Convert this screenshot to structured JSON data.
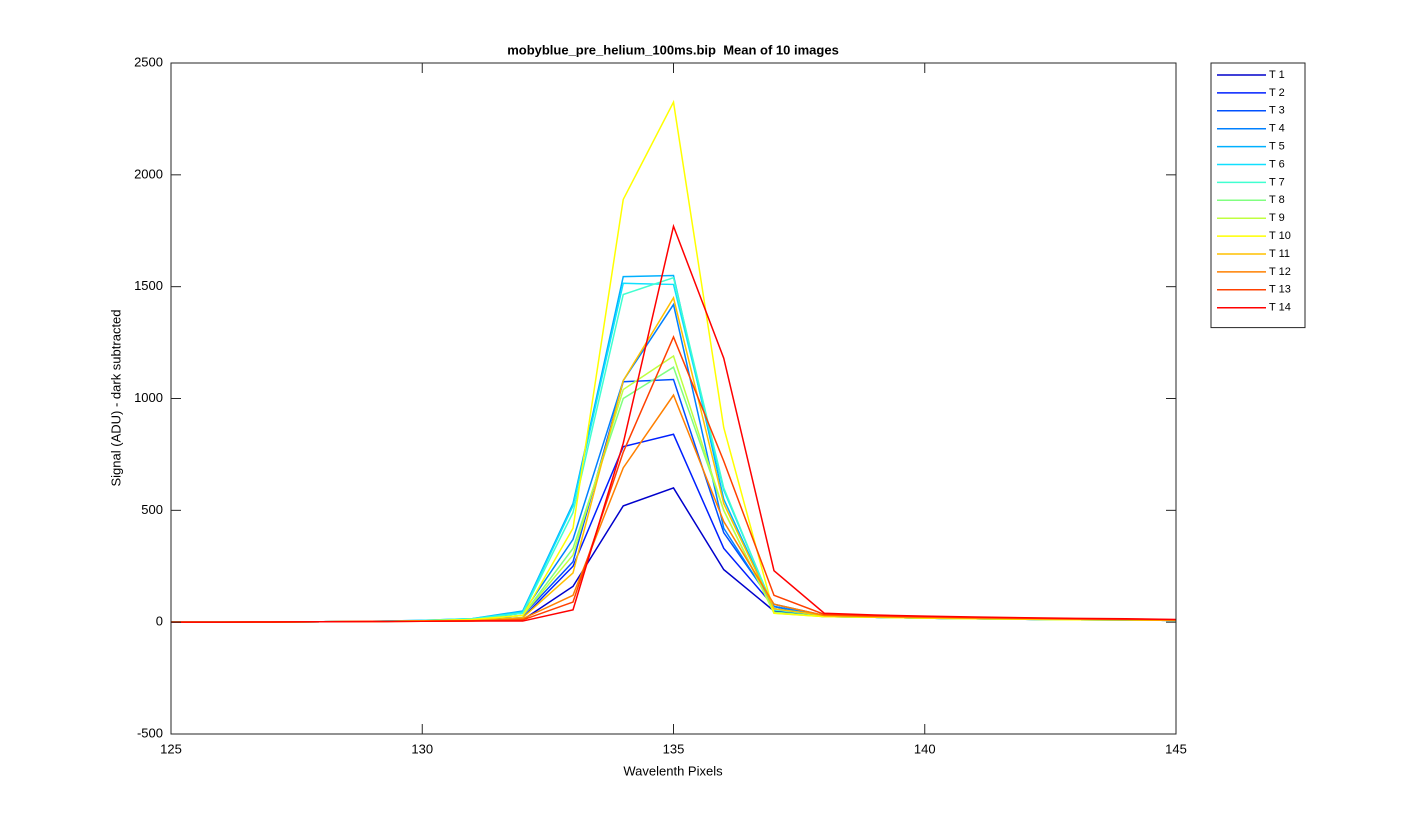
{
  "chart_data": {
    "type": "line",
    "title": "mobyblue_pre_helium_100ms.bip  Mean of 10 images",
    "xlabel": "Wavelenth Pixels",
    "ylabel": "Signal (ADU) - dark subtracted",
    "x": [
      125,
      126,
      127,
      128,
      129,
      130,
      131,
      132,
      133,
      134,
      135,
      136,
      137,
      138,
      139,
      140,
      141,
      142,
      143,
      144,
      145
    ],
    "xlim": [
      125,
      145
    ],
    "xticks": [
      125,
      130,
      135,
      140,
      145
    ],
    "ylim": [
      -500,
      2500
    ],
    "yticks": [
      -500,
      0,
      500,
      1000,
      1500,
      2000,
      2500
    ],
    "legend": "outside-top-right",
    "series": [
      {
        "name": "T 1",
        "color": "#0000cc",
        "values": [
          0,
          0,
          1,
          2,
          3,
          5,
          10,
          10,
          160,
          520,
          600,
          235,
          50,
          25,
          22,
          18,
          15,
          13,
          11,
          10,
          8
        ]
      },
      {
        "name": "T 2",
        "color": "#0020ff",
        "values": [
          0,
          0,
          1,
          2,
          3,
          5,
          10,
          20,
          250,
          785,
          840,
          330,
          70,
          25,
          22,
          18,
          15,
          13,
          11,
          10,
          8
        ]
      },
      {
        "name": "T 3",
        "color": "#0050ff",
        "values": [
          0,
          0,
          1,
          2,
          3,
          5,
          12,
          30,
          270,
          1075,
          1085,
          400,
          80,
          30,
          22,
          18,
          15,
          13,
          11,
          10,
          8
        ]
      },
      {
        "name": "T 4",
        "color": "#0080ff",
        "values": [
          0,
          0,
          1,
          2,
          3,
          6,
          14,
          40,
          370,
          1080,
          1420,
          420,
          70,
          30,
          22,
          18,
          15,
          13,
          11,
          10,
          8
        ]
      },
      {
        "name": "T 5",
        "color": "#00b0ff",
        "values": [
          0,
          0,
          1,
          2,
          4,
          8,
          16,
          50,
          530,
          1545,
          1550,
          550,
          60,
          30,
          22,
          18,
          15,
          13,
          11,
          10,
          8
        ]
      },
      {
        "name": "T 6",
        "color": "#10e0ff",
        "values": [
          0,
          0,
          1,
          2,
          4,
          8,
          16,
          45,
          520,
          1515,
          1510,
          590,
          60,
          30,
          22,
          18,
          15,
          13,
          11,
          10,
          8
        ]
      },
      {
        "name": "T 7",
        "color": "#40ffd0",
        "values": [
          0,
          0,
          1,
          2,
          4,
          7,
          15,
          40,
          490,
          1465,
          1540,
          600,
          55,
          30,
          22,
          18,
          15,
          13,
          11,
          10,
          8
        ]
      },
      {
        "name": "T 8",
        "color": "#80ff80",
        "values": [
          0,
          0,
          1,
          2,
          3,
          6,
          12,
          30,
          330,
          1000,
          1140,
          500,
          45,
          25,
          22,
          18,
          15,
          13,
          11,
          10,
          8
        ]
      },
      {
        "name": "T 9",
        "color": "#c0ff40",
        "values": [
          0,
          0,
          1,
          2,
          3,
          6,
          12,
          30,
          300,
          1040,
          1190,
          500,
          40,
          25,
          22,
          18,
          15,
          13,
          11,
          10,
          8
        ]
      },
      {
        "name": "T 10",
        "color": "#ffff00",
        "values": [
          0,
          0,
          1,
          2,
          3,
          6,
          12,
          30,
          420,
          1890,
          2325,
          870,
          40,
          25,
          22,
          18,
          15,
          13,
          11,
          10,
          8
        ]
      },
      {
        "name": "T 11",
        "color": "#ffc000",
        "values": [
          0,
          0,
          1,
          2,
          3,
          5,
          8,
          20,
          220,
          1080,
          1450,
          530,
          60,
          30,
          24,
          20,
          17,
          15,
          13,
          11,
          9
        ]
      },
      {
        "name": "T 12",
        "color": "#ff8000",
        "values": [
          0,
          0,
          1,
          2,
          3,
          4,
          6,
          15,
          120,
          690,
          1015,
          450,
          80,
          30,
          25,
          22,
          19,
          16,
          14,
          12,
          10
        ]
      },
      {
        "name": "T 13",
        "color": "#ff4000",
        "values": [
          0,
          0,
          1,
          2,
          3,
          4,
          5,
          10,
          90,
          760,
          1275,
          720,
          120,
          35,
          28,
          24,
          21,
          18,
          15,
          13,
          11
        ]
      },
      {
        "name": "T 14",
        "color": "#ff0000",
        "values": [
          0,
          0,
          1,
          2,
          3,
          4,
          5,
          5,
          55,
          800,
          1770,
          1180,
          230,
          40,
          32,
          27,
          23,
          20,
          17,
          15,
          12
        ]
      }
    ]
  }
}
